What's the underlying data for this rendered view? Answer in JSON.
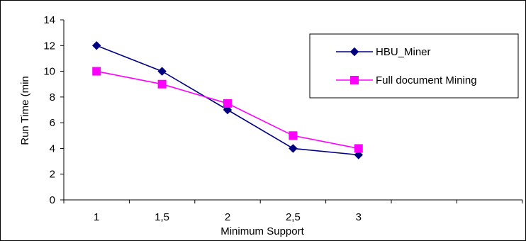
{
  "chart_data": {
    "type": "line",
    "title": "",
    "xlabel": "Minimum Support",
    "ylabel": "Run Time (min",
    "categories": [
      "1",
      "1,5",
      "2",
      "2,5",
      "3",
      "",
      ""
    ],
    "x": [
      1,
      1.5,
      2,
      2.5,
      3
    ],
    "ylim": [
      0,
      14
    ],
    "yticks": [
      "0",
      "2",
      "4",
      "6",
      "8",
      "10",
      "12",
      "14"
    ],
    "grid": false,
    "legend_position": "top-right",
    "series": [
      {
        "name": "HBU_Miner",
        "values": [
          12,
          10,
          7,
          4,
          3.5
        ],
        "color": "#000080",
        "marker": "diamond"
      },
      {
        "name": "Full document Mining",
        "values": [
          10,
          9,
          7.5,
          5,
          4
        ],
        "color": "#ff00ff",
        "marker": "square"
      }
    ]
  }
}
